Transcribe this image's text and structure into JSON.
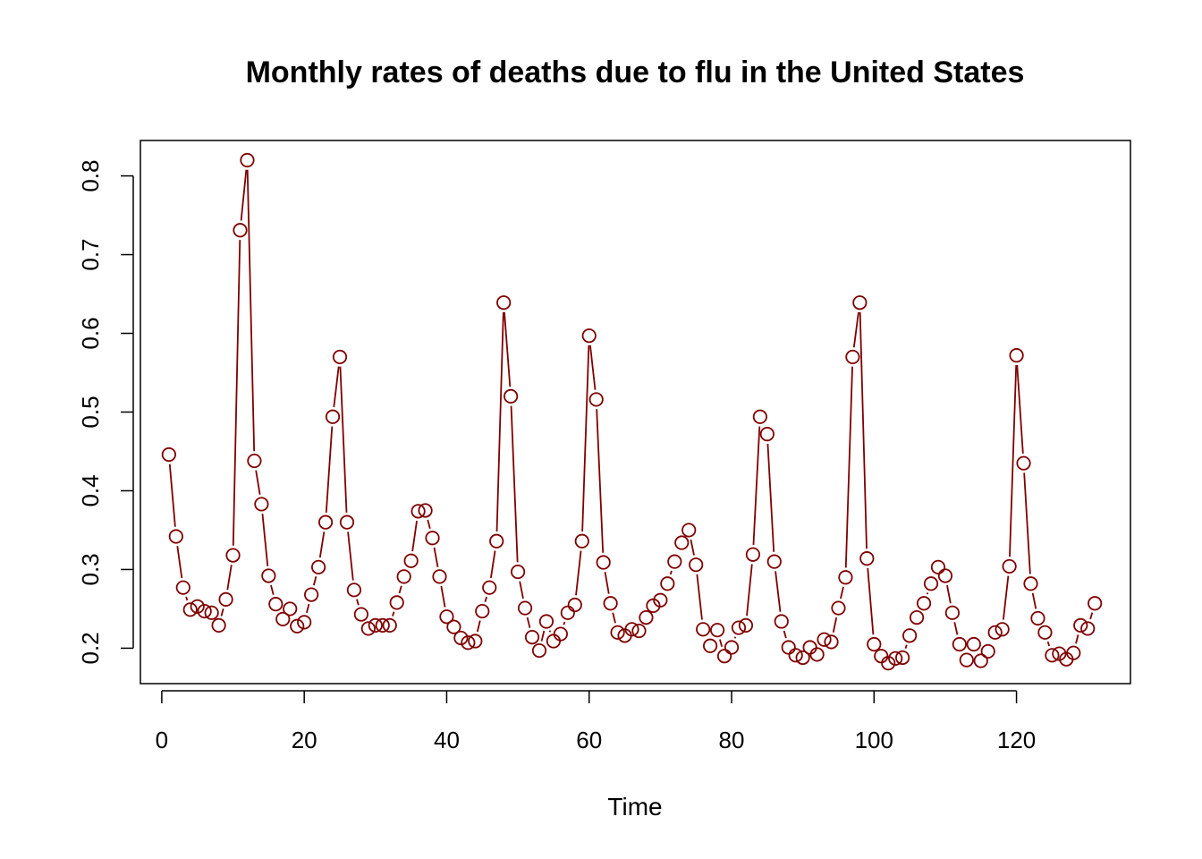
{
  "chart_data": {
    "type": "line",
    "title": "Monthly rates of deaths due to flu in the United States",
    "xlabel": "Time",
    "ylabel": "",
    "xlim": [
      -3,
      136
    ],
    "ylim": [
      0.155,
      0.845
    ],
    "x_ticks": [
      0,
      20,
      40,
      60,
      80,
      100,
      120
    ],
    "y_ticks": [
      0.2,
      0.3,
      0.4,
      0.5,
      0.6,
      0.7,
      0.8
    ],
    "x_tick_labels": [
      "0",
      "20",
      "40",
      "60",
      "80",
      "100",
      "120"
    ],
    "y_tick_labels": [
      "0.2",
      "0.3",
      "0.4",
      "0.5",
      "0.6",
      "0.7",
      "0.8"
    ],
    "grid": false,
    "legend": "none",
    "color": "#7f0000",
    "series": [
      {
        "x_start": 1,
        "values": [
          0.446,
          0.342,
          0.277,
          0.249,
          0.253,
          0.247,
          0.245,
          0.229,
          0.262,
          0.318,
          0.731,
          0.82,
          0.438,
          0.383,
          0.292,
          0.256,
          0.237,
          0.25,
          0.228,
          0.233,
          0.268,
          0.303,
          0.36,
          0.494,
          0.57,
          0.36,
          0.274,
          0.243,
          0.225,
          0.229,
          0.229,
          0.229,
          0.258,
          0.291,
          0.311,
          0.374,
          0.375,
          0.34,
          0.291,
          0.24,
          0.227,
          0.213,
          0.207,
          0.209,
          0.247,
          0.277,
          0.336,
          0.639,
          0.52,
          0.297,
          0.251,
          0.214,
          0.197,
          0.234,
          0.209,
          0.218,
          0.245,
          0.255,
          0.336,
          0.597,
          0.516,
          0.309,
          0.257,
          0.22,
          0.216,
          0.224,
          0.222,
          0.239,
          0.254,
          0.261,
          0.282,
          0.31,
          0.334,
          0.35,
          0.306,
          0.224,
          0.203,
          0.223,
          0.19,
          0.201,
          0.226,
          0.229,
          0.319,
          0.494,
          0.472,
          0.31,
          0.234,
          0.201,
          0.191,
          0.188,
          0.201,
          0.192,
          0.211,
          0.208,
          0.251,
          0.29,
          0.57,
          0.639,
          0.314,
          0.205,
          0.19,
          0.181,
          0.187,
          0.188,
          0.216,
          0.239,
          0.257,
          0.282,
          0.303,
          0.292,
          0.245,
          0.205,
          0.185,
          0.205,
          0.184,
          0.196,
          0.22,
          0.224,
          0.304,
          0.572,
          0.435,
          0.282,
          0.238,
          0.22,
          0.191,
          0.193,
          0.186,
          0.194,
          0.229,
          0.225,
          0.257
        ]
      }
    ]
  }
}
